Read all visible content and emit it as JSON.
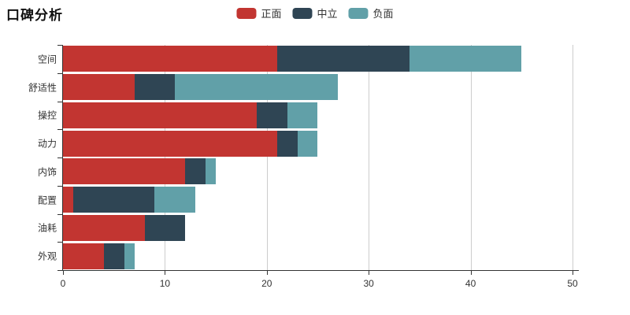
{
  "title": "口碑分析",
  "legend": {
    "items": [
      {
        "label": "正面",
        "color": "#c23531"
      },
      {
        "label": "中立",
        "color": "#2f4554"
      },
      {
        "label": "负面",
        "color": "#61a0a8"
      }
    ],
    "position": "top-center"
  },
  "colors": {
    "background": "#ffffff",
    "axis": "#333333",
    "grid": "#cccccc",
    "text": "#333333",
    "title": "#111111"
  },
  "chart_data": {
    "type": "bar",
    "orientation": "horizontal",
    "stacked": true,
    "title": "口碑分析",
    "categories": [
      "空间",
      "舒适性",
      "操控",
      "动力",
      "内饰",
      "配置",
      "油耗",
      "外观"
    ],
    "series": [
      {
        "name": "正面",
        "color": "#c23531",
        "values": [
          21,
          7,
          19,
          21,
          12,
          1,
          8,
          4
        ]
      },
      {
        "name": "中立",
        "color": "#2f4554",
        "values": [
          13,
          4,
          3,
          2,
          2,
          8,
          4,
          2
        ]
      },
      {
        "name": "负面",
        "color": "#61a0a8",
        "values": [
          11,
          16,
          3,
          2,
          1,
          4,
          0,
          1
        ]
      }
    ],
    "totals": [
      45,
      27,
      25,
      25,
      15,
      13,
      12,
      7
    ],
    "xlabel": "",
    "ylabel": "",
    "xlim": [
      0,
      50
    ],
    "xticks": [
      0,
      10,
      20,
      30,
      40,
      50
    ],
    "grid": true,
    "legend_position": "top-center"
  }
}
